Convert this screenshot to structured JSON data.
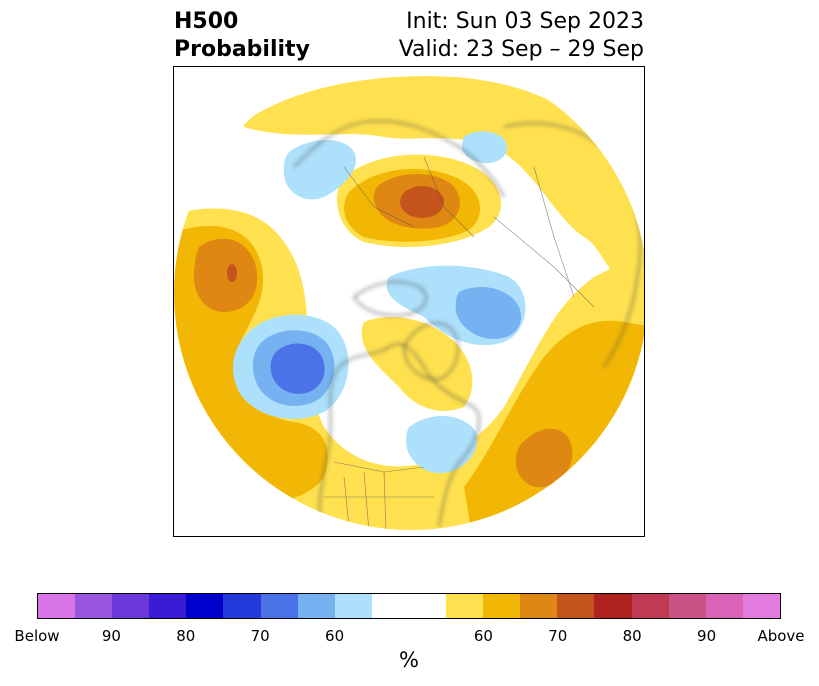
{
  "title": {
    "left_line1": "H500",
    "left_line2": "Probability",
    "right_line1": "Init: Sun 03 Sep 2023",
    "right_line2": "Valid: 23 Sep – 29 Sep"
  },
  "colors": {
    "below": [
      "#d873e8",
      "#9b56e0",
      "#6b38d9",
      "#3a1bd6",
      "#0000cc",
      "#2339d9",
      "#4b72e6",
      "#76b2f2",
      "#ade0fb"
    ],
    "neutral": "#ffffff",
    "above": [
      "#ffe14f",
      "#f2b705",
      "#de8712",
      "#c4541c",
      "#b0221f",
      "#c03a56",
      "#cb5287",
      "#da63b7",
      "#e47be0"
    ]
  },
  "colorbar": {
    "tick_labels": [
      "Below",
      "90",
      "80",
      "70",
      "60",
      "60",
      "70",
      "80",
      "90",
      "Above"
    ],
    "unit_label": "%"
  },
  "map": {
    "projection": "north-polar-stereographic",
    "field": "500 hPa height anomaly probability"
  }
}
